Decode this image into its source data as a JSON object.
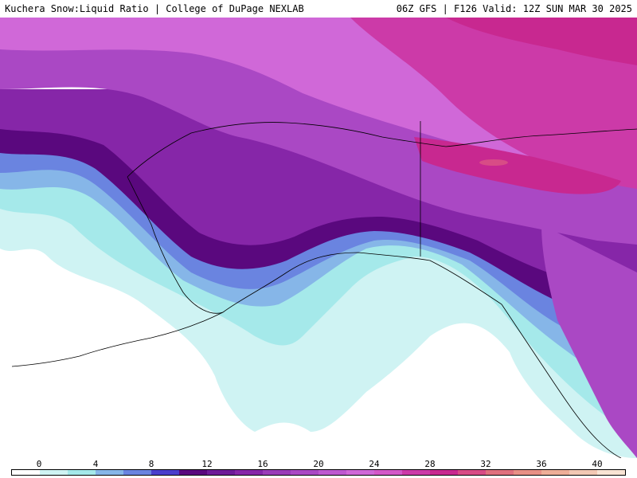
{
  "header": {
    "left": "Kuchera Snow:Liquid Ratio | College of DuPage NEXLAB",
    "right": "06Z GFS | F126 Valid: 12Z SUN MAR 30 2025"
  },
  "legend": {
    "ticks": [
      "0",
      "4",
      "8",
      "12",
      "16",
      "20",
      "24",
      "28",
      "32",
      "36",
      "40"
    ],
    "colors": [
      "#ffffff",
      "#cff3f3",
      "#a5e9ea",
      "#86b6e8",
      "#6a84e0",
      "#4a3fcc",
      "#5a087e",
      "#6e1b98",
      "#8626a8",
      "#9a3cb8",
      "#aa48c4",
      "#be58d0",
      "#d068d8",
      "#d458c8",
      "#cc3aa8",
      "#c82890",
      "#d84c86",
      "#e0707e",
      "#e89086",
      "#eeae98",
      "#f2c8b4",
      "#f8e4d4"
    ]
  },
  "colors": {
    "water_none": "#ffffff",
    "light_cyan": "#cff3f3",
    "cyan": "#a5e9ea",
    "light_blue": "#86b6e8",
    "blue": "#6a84e0",
    "deep_purple": "#5a087e",
    "purple": "#8626a8",
    "violet": "#aa48c4",
    "light_violet": "#d068d8",
    "magenta": "#cc3aa8",
    "deep_magenta": "#c82890",
    "pink_peak": "#d84c86"
  }
}
